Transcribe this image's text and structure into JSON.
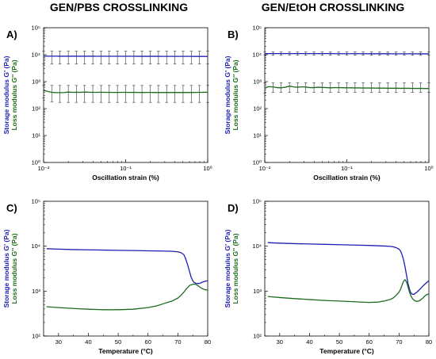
{
  "titles": {
    "left": "GEN/PBS CROSSLINKING",
    "right": "GEN/EtOH CROSSLINKING"
  },
  "colors": {
    "storage": "#1f1fb4",
    "loss": "#1e6b1e",
    "axis": "#000000"
  },
  "chart_data": [
    {
      "panel": "A)",
      "type": "line",
      "xlabel": "Oscillation strain (%)",
      "ylabel_storage": "Storage modulus G' (Pa)",
      "ylabel_loss": "Loss modulus G'' (Pa)",
      "xscale": "log",
      "yscale": "log",
      "xlim": [
        0.01,
        1
      ],
      "ylim": [
        1,
        100000
      ],
      "xticks": [
        "10⁻²",
        "10⁻¹",
        "10⁰"
      ],
      "yticks": [
        "10⁰",
        "10¹",
        "10²",
        "10³",
        "10⁴",
        "10⁵"
      ],
      "series": [
        {
          "kind": "storage",
          "x": [
            0.01,
            0.011,
            0.0126,
            0.0141,
            0.0158,
            0.0178,
            0.02,
            0.0224,
            0.0251,
            0.0282,
            0.0316,
            0.0355,
            0.0398,
            0.0447,
            0.0501,
            0.0562,
            0.0631,
            0.0708,
            0.0794,
            0.0891,
            0.1,
            0.112,
            0.126,
            0.141,
            0.158,
            0.178,
            0.2,
            0.224,
            0.251,
            0.282,
            0.316,
            0.355,
            0.398,
            0.447,
            0.501,
            0.562,
            0.631,
            0.708,
            0.794,
            0.891,
            1.0
          ],
          "y": [
            8800,
            8800,
            8790,
            8790,
            8780,
            8780,
            8780,
            8770,
            8770,
            8770,
            8760,
            8760,
            8760,
            8750,
            8750,
            8750,
            8740,
            8740,
            8740,
            8730,
            8730,
            8720,
            8720,
            8710,
            8710,
            8700,
            8700,
            8690,
            8690,
            8680,
            8680,
            8670,
            8670,
            8660,
            8650,
            8650,
            8640,
            8630,
            8620,
            8610,
            8600
          ],
          "err_x": [
            0.01,
            0.0126,
            0.0158,
            0.02,
            0.0251,
            0.0316,
            0.0398,
            0.0501,
            0.0631,
            0.0794,
            0.1,
            0.126,
            0.158,
            0.2,
            0.251,
            0.316,
            0.398,
            0.501,
            0.631,
            0.794,
            1.0
          ],
          "err_lo": [
            4500,
            4500,
            4500,
            4500,
            4500,
            4500,
            4500,
            4500,
            4500,
            4500,
            4500,
            4500,
            4500,
            4500,
            4500,
            4500,
            4500,
            4500,
            4500,
            4500,
            4500
          ],
          "err_hi": [
            13500,
            13500,
            13500,
            13500,
            13500,
            13500,
            13500,
            13500,
            13500,
            13500,
            13500,
            13500,
            13500,
            13500,
            13500,
            13500,
            13500,
            13500,
            13500,
            13500,
            13500
          ]
        },
        {
          "kind": "loss",
          "x": [
            0.01,
            0.011,
            0.0126,
            0.0141,
            0.0158,
            0.0178,
            0.02,
            0.0224,
            0.0251,
            0.0282,
            0.0316,
            0.0355,
            0.0398,
            0.0447,
            0.0501,
            0.0562,
            0.0631,
            0.0708,
            0.0794,
            0.0891,
            0.1,
            0.112,
            0.126,
            0.141,
            0.158,
            0.178,
            0.2,
            0.224,
            0.251,
            0.282,
            0.316,
            0.355,
            0.398,
            0.447,
            0.501,
            0.562,
            0.631,
            0.708,
            0.794,
            0.891,
            1.0
          ],
          "y": [
            470,
            440,
            400,
            390,
            390,
            395,
            410,
            400,
            405,
            400,
            410,
            405,
            400,
            400,
            405,
            400,
            400,
            398,
            398,
            400,
            400,
            398,
            400,
            398,
            396,
            398,
            398,
            396,
            396,
            398,
            396,
            396,
            396,
            398,
            396,
            396,
            396,
            398,
            400,
            402,
            405
          ],
          "err_x": [
            0.01,
            0.0126,
            0.0158,
            0.02,
            0.0251,
            0.0316,
            0.0398,
            0.0501,
            0.0631,
            0.0794,
            0.1,
            0.126,
            0.158,
            0.2,
            0.251,
            0.316,
            0.398,
            0.501,
            0.631,
            0.794,
            1.0
          ],
          "err_lo": [
            250,
            180,
            170,
            170,
            170,
            170,
            170,
            170,
            170,
            170,
            170,
            170,
            170,
            170,
            170,
            170,
            170,
            170,
            170,
            170,
            170
          ],
          "err_hi": [
            720,
            720,
            720,
            720,
            720,
            720,
            720,
            720,
            720,
            720,
            720,
            720,
            720,
            720,
            720,
            720,
            720,
            720,
            720,
            720,
            720
          ]
        }
      ]
    },
    {
      "panel": "B)",
      "type": "line",
      "xlabel": "Oscillation strain (%)",
      "ylabel_storage": "Storage modulus G' (Pa)",
      "ylabel_loss": "Loss modulus G'' (Pa)",
      "xscale": "log",
      "yscale": "log",
      "xlim": [
        0.01,
        1
      ],
      "ylim": [
        1,
        100000
      ],
      "xticks": [
        "10⁻²",
        "10⁻¹",
        "10⁰"
      ],
      "yticks": [
        "10⁰",
        "10¹",
        "10²",
        "10³",
        "10⁴",
        "10⁵"
      ],
      "series": [
        {
          "kind": "storage",
          "x": [
            0.01,
            0.0126,
            0.0158,
            0.02,
            0.0251,
            0.0316,
            0.0398,
            0.0501,
            0.0631,
            0.0794,
            0.1,
            0.126,
            0.158,
            0.2,
            0.251,
            0.316,
            0.398,
            0.501,
            0.631,
            0.794,
            1.0
          ],
          "y": [
            11000,
            11000,
            11000,
            11000,
            11000,
            10950,
            10950,
            10950,
            10950,
            10900,
            10900,
            10900,
            10900,
            10850,
            10850,
            10850,
            10800,
            10800,
            10800,
            10750,
            10750
          ],
          "err_x": [
            0.01,
            0.0126,
            0.0158,
            0.02,
            0.0251,
            0.0316,
            0.0398,
            0.0501,
            0.0631,
            0.0794,
            0.1,
            0.126,
            0.158,
            0.2,
            0.251,
            0.316,
            0.398,
            0.501,
            0.631,
            0.794,
            1.0
          ],
          "err_lo": [
            9500,
            9500,
            9500,
            9500,
            9500,
            9500,
            9500,
            9500,
            9500,
            9500,
            9500,
            9500,
            9500,
            9500,
            9500,
            9500,
            9500,
            9500,
            9500,
            9500,
            9500
          ],
          "err_hi": [
            12500,
            12500,
            12500,
            12500,
            12500,
            12500,
            12500,
            12500,
            12500,
            12500,
            12500,
            12500,
            12500,
            12500,
            12500,
            12500,
            12500,
            12500,
            12500,
            12500,
            12500
          ]
        },
        {
          "kind": "loss",
          "x": [
            0.01,
            0.011,
            0.0126,
            0.0141,
            0.0158,
            0.0178,
            0.02,
            0.0224,
            0.0251,
            0.0282,
            0.0316,
            0.0355,
            0.0398,
            0.0447,
            0.0501,
            0.0562,
            0.0631,
            0.0708,
            0.0794,
            0.0891,
            0.1,
            0.112,
            0.126,
            0.141,
            0.158,
            0.178,
            0.2,
            0.224,
            0.251,
            0.282,
            0.316,
            0.355,
            0.398,
            0.447,
            0.501,
            0.562,
            0.631,
            0.708,
            0.794,
            0.891,
            1.0
          ],
          "y": [
            560,
            650,
            640,
            600,
            590,
            620,
            680,
            640,
            620,
            640,
            630,
            600,
            600,
            620,
            610,
            600,
            590,
            600,
            600,
            595,
            590,
            590,
            585,
            585,
            580,
            580,
            580,
            575,
            575,
            575,
            570,
            570,
            570,
            565,
            565,
            565,
            560,
            560,
            560,
            555,
            555
          ],
          "err_x": [
            0.01,
            0.0126,
            0.0158,
            0.02,
            0.0251,
            0.0316,
            0.0398,
            0.0501,
            0.0631,
            0.0794,
            0.1,
            0.126,
            0.158,
            0.2,
            0.251,
            0.316,
            0.398,
            0.501,
            0.631,
            0.794,
            1.0
          ],
          "err_lo": [
            380,
            400,
            400,
            400,
            400,
            400,
            400,
            400,
            400,
            400,
            400,
            400,
            400,
            400,
            400,
            400,
            400,
            400,
            400,
            400,
            400
          ],
          "err_hi": [
            900,
            900,
            900,
            900,
            900,
            900,
            900,
            900,
            900,
            900,
            900,
            900,
            900,
            900,
            900,
            900,
            900,
            900,
            900,
            900,
            900
          ]
        }
      ]
    },
    {
      "panel": "C)",
      "type": "line",
      "xlabel": "Temperature (°C)",
      "ylabel_storage": "Storage modulus G' (Pa)",
      "ylabel_loss": "Loss modulus G'' (Pa)",
      "xscale": "linear",
      "yscale": "log",
      "xlim": [
        25,
        80
      ],
      "ylim": [
        100,
        100000
      ],
      "xticks": [
        "30",
        "40",
        "50",
        "60",
        "70",
        "80"
      ],
      "xtick_values": [
        30,
        40,
        50,
        60,
        70,
        80
      ],
      "yticks": [
        "10²",
        "10³",
        "10⁴",
        "10⁵"
      ],
      "series": [
        {
          "kind": "storage",
          "x": [
            26,
            30,
            35,
            40,
            45,
            50,
            55,
            60,
            65,
            68,
            70,
            71,
            72,
            72.5,
            73,
            73.5,
            74,
            74.5,
            75,
            75.5,
            76,
            76.5,
            77,
            77.5,
            78,
            79,
            80
          ],
          "y": [
            8800,
            8600,
            8400,
            8300,
            8200,
            8100,
            8000,
            7900,
            7800,
            7700,
            7500,
            7200,
            6500,
            5500,
            4400,
            3400,
            2600,
            2000,
            1700,
            1550,
            1500,
            1480,
            1480,
            1500,
            1560,
            1650,
            1700
          ]
        },
        {
          "kind": "loss",
          "x": [
            26,
            30,
            35,
            40,
            45,
            50,
            55,
            60,
            63,
            65,
            68,
            70,
            71,
            72,
            73,
            74,
            75,
            75.5,
            76,
            76.5,
            77,
            78,
            79,
            80
          ],
          "y": [
            450,
            430,
            410,
            395,
            385,
            385,
            395,
            430,
            470,
            520,
            600,
            700,
            800,
            950,
            1150,
            1350,
            1420,
            1430,
            1410,
            1350,
            1280,
            1150,
            1080,
            1050
          ]
        }
      ]
    },
    {
      "panel": "D)",
      "type": "line",
      "xlabel": "Temperature (°C)",
      "ylabel_storage": "Storage modulus G' (Pa)",
      "ylabel_loss": "Loss modulus G'' (Pa)",
      "xscale": "linear",
      "yscale": "log",
      "xlim": [
        25,
        80
      ],
      "ylim": [
        100,
        100000
      ],
      "xticks": [
        "30",
        "40",
        "50",
        "60",
        "70",
        "80"
      ],
      "xtick_values": [
        30,
        40,
        50,
        60,
        70,
        80
      ],
      "yticks": [
        "10²",
        "10³",
        "10⁴",
        "10⁵"
      ],
      "series": [
        {
          "kind": "storage",
          "x": [
            26,
            30,
            35,
            40,
            45,
            50,
            55,
            60,
            65,
            67,
            68,
            69,
            70,
            70.5,
            71,
            71.5,
            72,
            72.5,
            73,
            73.5,
            74,
            74.5,
            75,
            76,
            77,
            78,
            79,
            80
          ],
          "y": [
            12000,
            11700,
            11400,
            11200,
            11000,
            10800,
            10600,
            10400,
            10100,
            9900,
            9700,
            9300,
            8600,
            7800,
            6500,
            5000,
            3500,
            2300,
            1500,
            1100,
            900,
            850,
            850,
            950,
            1100,
            1300,
            1500,
            1700
          ]
        },
        {
          "kind": "loss",
          "x": [
            26,
            30,
            35,
            40,
            45,
            50,
            55,
            60,
            63,
            65,
            67,
            68,
            69,
            70,
            70.5,
            71,
            71.5,
            72,
            72.5,
            73,
            73.5,
            74,
            74.5,
            75,
            75.5,
            76,
            76.5,
            77,
            78,
            79,
            80
          ],
          "y": [
            760,
            720,
            680,
            650,
            620,
            600,
            580,
            560,
            570,
            600,
            650,
            700,
            800,
            950,
            1100,
            1350,
            1650,
            1800,
            1600,
            1250,
            950,
            780,
            680,
            630,
            600,
            590,
            600,
            620,
            700,
            820,
            870
          ]
        }
      ]
    }
  ]
}
